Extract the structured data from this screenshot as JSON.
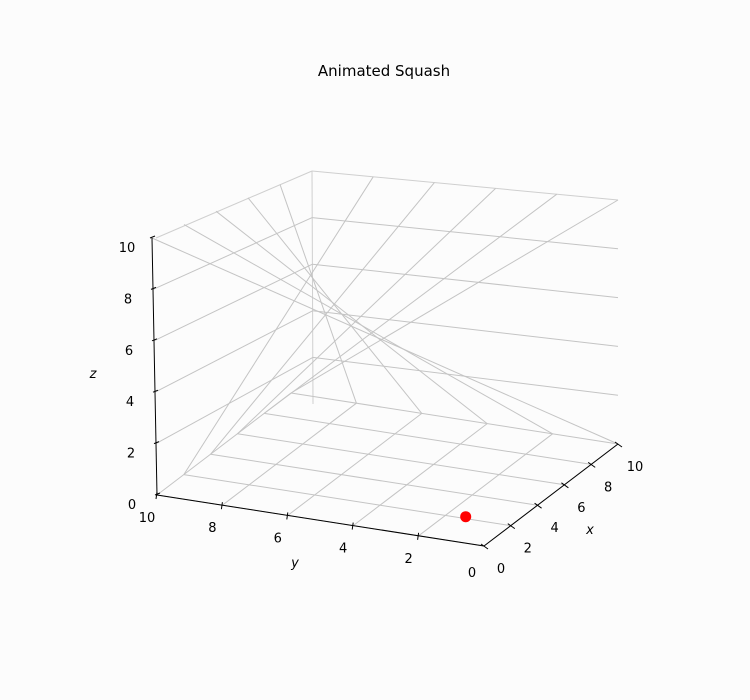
{
  "chart_data": {
    "type": "scatter",
    "projection": "3d",
    "title": "Animated Squash",
    "xlabel": "x",
    "ylabel": "y",
    "zlabel": "z",
    "xlim": [
      0,
      10
    ],
    "ylim": [
      0,
      10
    ],
    "zlim": [
      0,
      10
    ],
    "x_ticks": [
      "0",
      "2",
      "4",
      "6",
      "8",
      "10"
    ],
    "y_ticks": [
      "2",
      "4",
      "6",
      "8",
      "10"
    ],
    "y_zero_tick": "0",
    "z_ticks": [
      "0",
      "2",
      "4",
      "6",
      "8",
      "10"
    ],
    "grid": true,
    "points": [
      {
        "x": 1,
        "y": 1,
        "z": 0,
        "color": "#ff0000"
      }
    ]
  }
}
